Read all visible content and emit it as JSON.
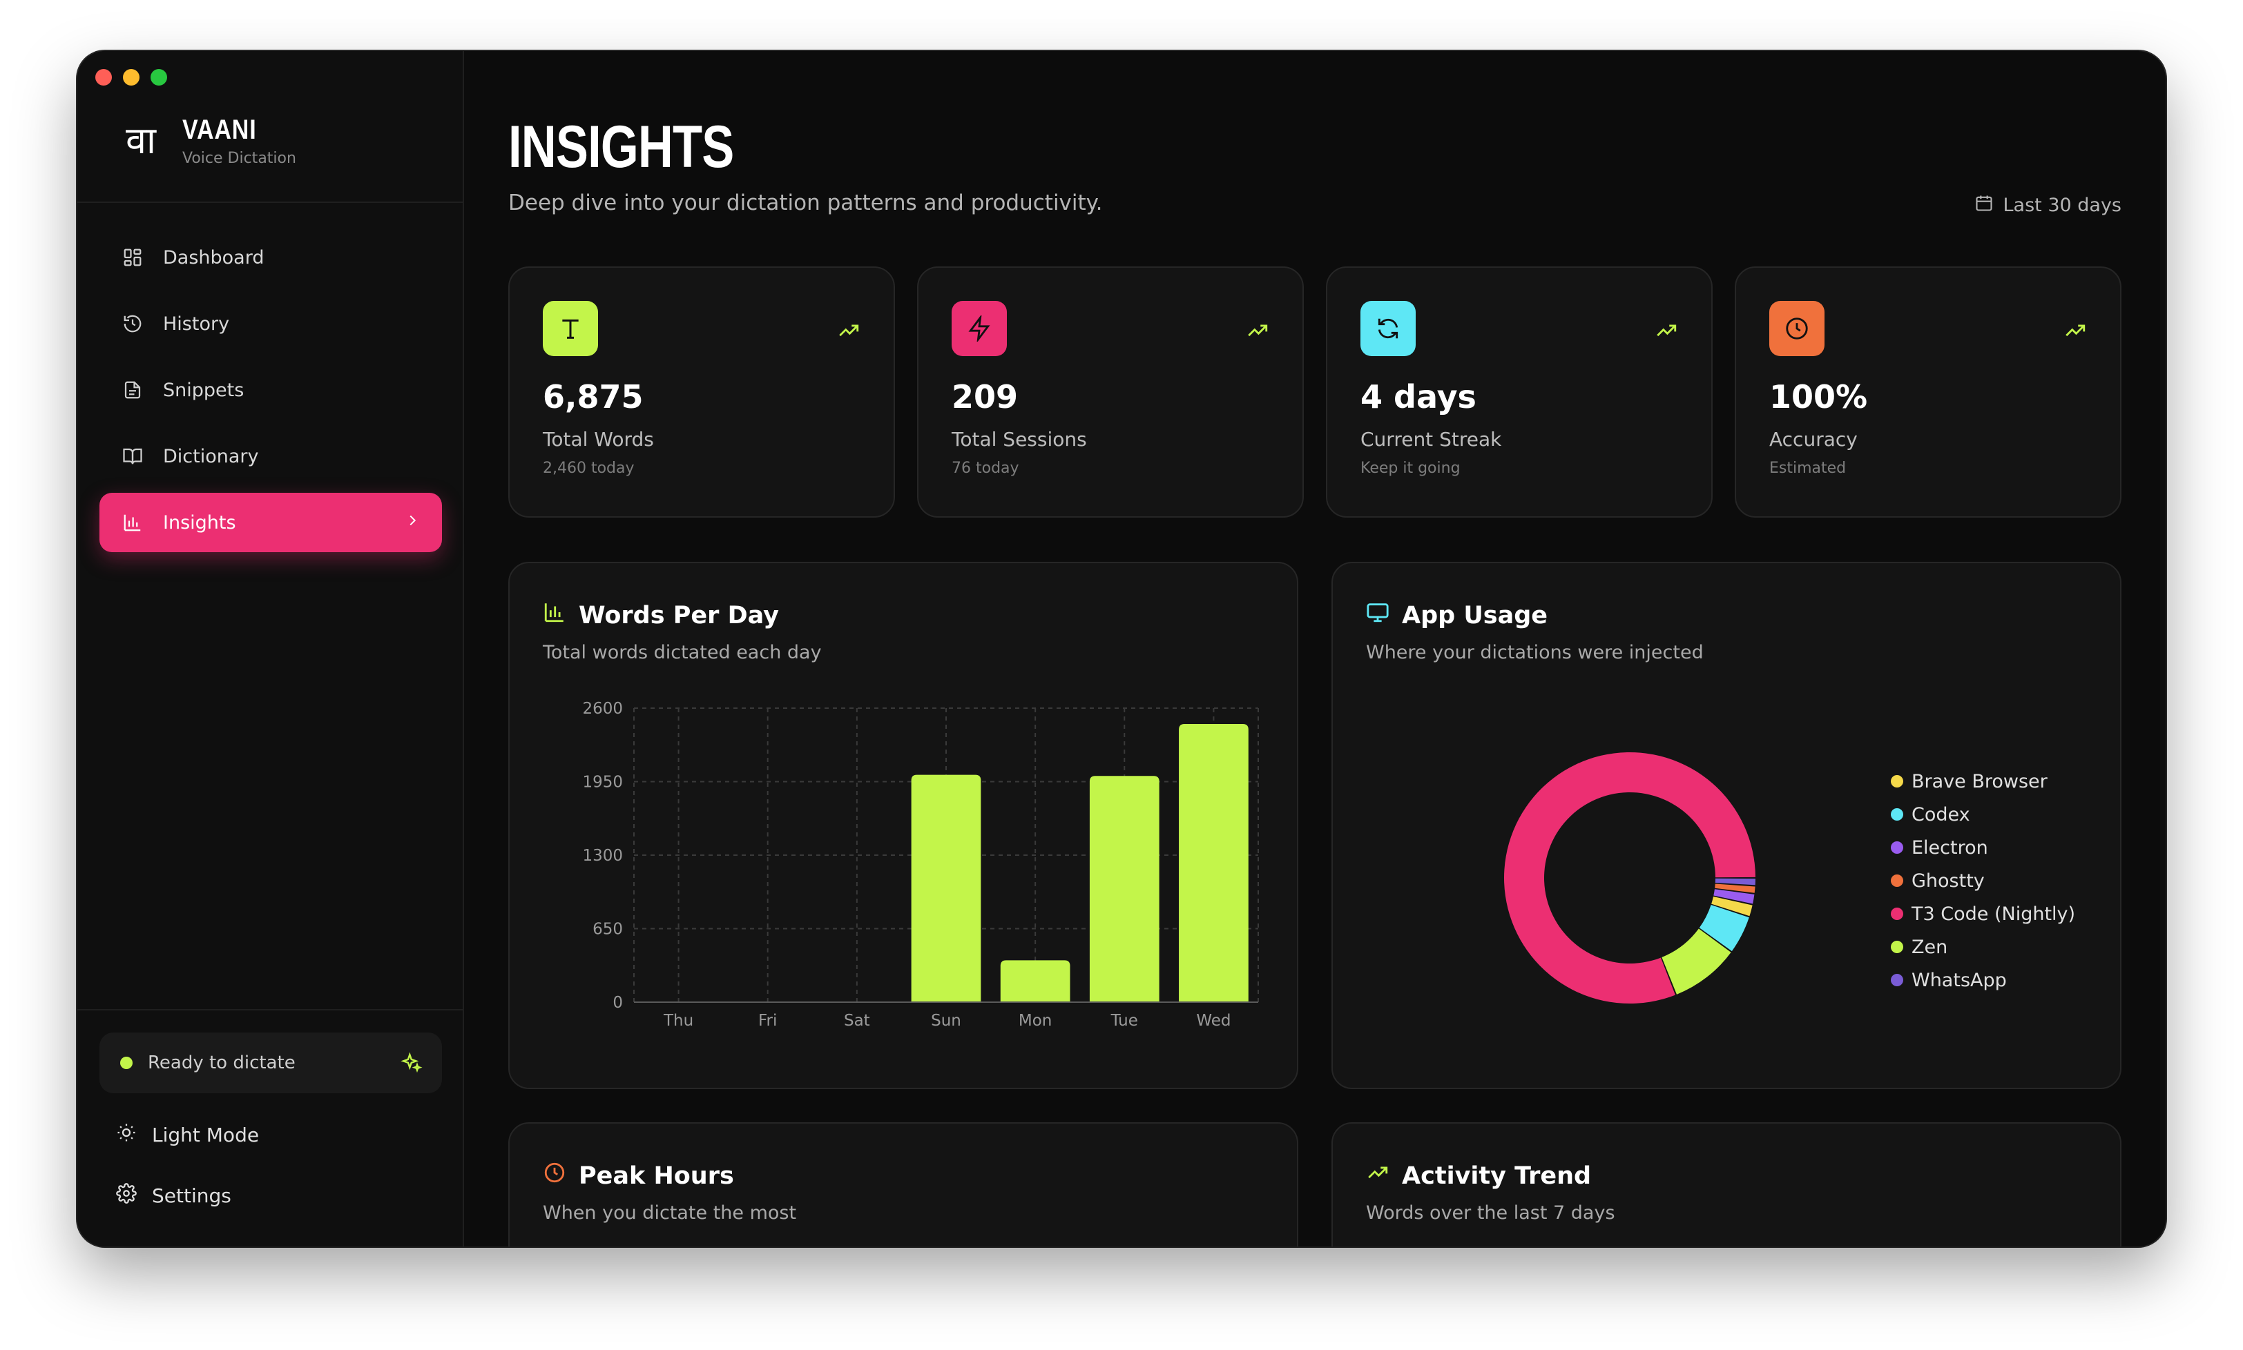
{
  "app": {
    "name": "VAANI",
    "tagline": "Voice Dictation",
    "logo_glyph": "वा"
  },
  "window_controls": {
    "close": "#ff5f57",
    "minimize": "#febc2e",
    "zoom": "#28c840"
  },
  "sidebar": {
    "items": [
      {
        "label": "Dashboard",
        "icon": "dashboard-icon"
      },
      {
        "label": "History",
        "icon": "history-icon"
      },
      {
        "label": "Snippets",
        "icon": "snippets-icon"
      },
      {
        "label": "Dictionary",
        "icon": "dictionary-icon"
      },
      {
        "label": "Insights",
        "icon": "insights-icon",
        "active": true
      }
    ],
    "status": "Ready to dictate",
    "light_mode": "Light Mode",
    "settings": "Settings"
  },
  "header": {
    "title": "INSIGHTS",
    "subtitle": "Deep dive into your dictation patterns and productivity.",
    "range": "Last 30 days"
  },
  "stats": [
    {
      "value": "6,875",
      "label": "Total Words",
      "sub": "2,460 today",
      "tile_color": "#c3f54a",
      "icon": "text-icon"
    },
    {
      "value": "209",
      "label": "Total Sessions",
      "sub": "76 today",
      "tile_color": "#ec2f72",
      "icon": "lightning-icon"
    },
    {
      "value": "4 days",
      "label": "Current Streak",
      "sub": "Keep it going",
      "tile_color": "#5ee7f5",
      "icon": "refresh-icon"
    },
    {
      "value": "100%",
      "label": "Accuracy",
      "sub": "Estimated",
      "tile_color": "#f0713c",
      "icon": "clock-icon"
    }
  ],
  "words_per_day": {
    "title": "Words Per Day",
    "subtitle": "Total words dictated each day"
  },
  "app_usage": {
    "title": "App Usage",
    "subtitle": "Where your dictations were injected"
  },
  "peak_hours": {
    "title": "Peak Hours",
    "subtitle": "When you dictate the most"
  },
  "activity_trend": {
    "title": "Activity Trend",
    "subtitle": "Words over the last 7 days"
  },
  "chart_data": [
    {
      "type": "bar",
      "categories": [
        "Thu",
        "Fri",
        "Sat",
        "Sun",
        "Mon",
        "Tue",
        "Wed"
      ],
      "values": [
        0,
        0,
        0,
        2010,
        370,
        2000,
        2460
      ],
      "yticks": [
        0,
        650,
        1300,
        1950,
        2600
      ],
      "ylim": [
        0,
        2600
      ],
      "grid": true,
      "color": "#c3f54a"
    },
    {
      "type": "pie",
      "donut": true,
      "legend_position": "right",
      "slices": [
        {
          "name": "T3 Code (Nightly)",
          "value": 81.0,
          "color": "#ec2f72"
        },
        {
          "name": "Zen",
          "value": 9.0,
          "color": "#c3f54a"
        },
        {
          "name": "Codex",
          "value": 5.0,
          "color": "#5ee7f5"
        },
        {
          "name": "Brave Browser",
          "value": 1.6,
          "color": "#f5d94a"
        },
        {
          "name": "Electron",
          "value": 1.4,
          "color": "#9a5cf0"
        },
        {
          "name": "Ghostty",
          "value": 1.0,
          "color": "#f0713c"
        },
        {
          "name": "WhatsApp",
          "value": 1.0,
          "color": "#7a5cd6"
        }
      ],
      "legend_order": [
        "Brave Browser",
        "Codex",
        "Electron",
        "Ghostty",
        "T3 Code (Nightly)",
        "Zen",
        "WhatsApp"
      ]
    }
  ]
}
